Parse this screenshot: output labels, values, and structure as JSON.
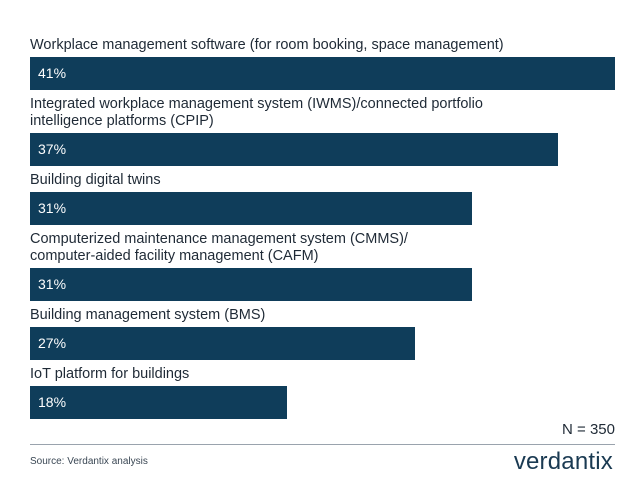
{
  "chart_data": {
    "type": "bar",
    "orientation": "horizontal",
    "categories": [
      "Workplace management software (for room booking, space management)",
      "Integrated workplace management system (IWMS)/connected portfolio\nintelligence platforms (CPIP)",
      "Building digital twins",
      "Computerized maintenance management system (CMMS)/\ncomputer-aided facility management (CAFM)",
      "Building management system (BMS)",
      "IoT platform for buildings"
    ],
    "values": [
      41,
      37,
      31,
      31,
      27,
      18
    ],
    "value_labels": [
      "41%",
      "37%",
      "31%",
      "31%",
      "27%",
      "18%"
    ],
    "unit": "%",
    "xlim": [
      0,
      41
    ],
    "grid": false,
    "legend": "none",
    "bar_color": "#0f3d5a",
    "title": "",
    "xlabel": "",
    "ylabel": ""
  },
  "footer": {
    "sample_size": "N = 350",
    "source": "Source: Verdantix analysis",
    "brand": "verdantix"
  }
}
